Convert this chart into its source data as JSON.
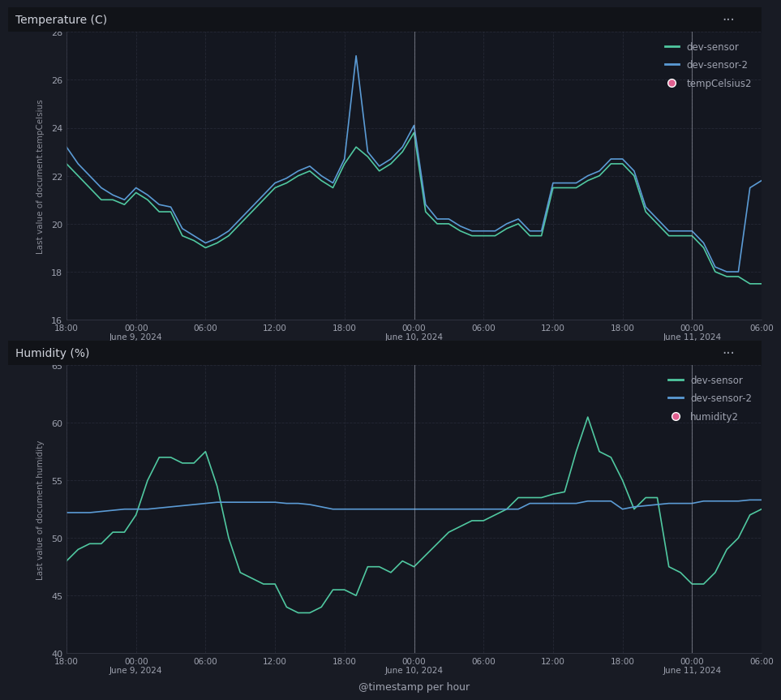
{
  "background_color": "#181b24",
  "panel_bg": "#141720",
  "header_bg": "#111318",
  "grid_color": "#2a2d3a",
  "text_color": "#9fa3b0",
  "title_color": "#d0d3dc",
  "axis_label_color": "#8a8d98",
  "temp_title": "Temperature (C)",
  "temp_ylabel": "Last value of document.tempCelsius",
  "temp_xlabel": "@timestamp per hour",
  "temp_ylim": [
    16,
    28
  ],
  "temp_yticks": [
    16,
    18,
    20,
    22,
    24,
    26,
    28
  ],
  "hum_title": "Humidity (%)",
  "hum_ylabel": "Last value of document.humidity",
  "hum_xlabel": "@timestamp per hour",
  "hum_ylim": [
    40,
    65
  ],
  "hum_yticks": [
    40,
    45,
    50,
    55,
    60,
    65
  ],
  "color_sensor1": "#50c8a0",
  "color_sensor2": "#5b9bd5",
  "color_sensor3": "#e06090",
  "legend_labels": [
    "dev-sensor",
    "dev-sensor-2",
    "tempCelsius2"
  ],
  "legend_labels_hum": [
    "dev-sensor",
    "dev-sensor-2",
    "humidity2"
  ],
  "xtick_labels": [
    "18:00",
    "00:00\nJune 9, 2024",
    "06:00",
    "12:00",
    "18:00",
    "00:00\nJune 10, 2024",
    "06:00",
    "12:00",
    "18:00",
    "00:00\nJune 11, 2024",
    "06:00"
  ],
  "xtick_positions": [
    0,
    6,
    12,
    18,
    24,
    30,
    36,
    42,
    48,
    54,
    60
  ],
  "vline_positions": [
    30,
    54
  ],
  "temp_sensor1_x": [
    0,
    1,
    2,
    3,
    4,
    5,
    6,
    7,
    8,
    9,
    10,
    11,
    12,
    13,
    14,
    15,
    16,
    17,
    18,
    19,
    20,
    21,
    22,
    23,
    24,
    25,
    26,
    27,
    28,
    29,
    30,
    31,
    32,
    33,
    34,
    35,
    36,
    37,
    38,
    39,
    40,
    41,
    42,
    43,
    44,
    45,
    46,
    47,
    48,
    49,
    50,
    51,
    52,
    53,
    54,
    55,
    56,
    57,
    58,
    59,
    60
  ],
  "temp_sensor1_y": [
    22.5,
    22.0,
    21.5,
    21.0,
    21.0,
    20.8,
    21.3,
    21.0,
    20.5,
    20.5,
    19.5,
    19.3,
    19.0,
    19.2,
    19.5,
    20.0,
    20.5,
    21.0,
    21.5,
    21.7,
    22.0,
    22.2,
    21.8,
    21.5,
    22.5,
    23.2,
    22.8,
    22.2,
    22.5,
    23.0,
    23.8,
    20.5,
    20.0,
    20.0,
    19.7,
    19.5,
    19.5,
    19.5,
    19.8,
    20.0,
    19.5,
    19.5,
    21.5,
    21.5,
    21.5,
    21.8,
    22.0,
    22.5,
    22.5,
    22.0,
    20.5,
    20.0,
    19.5,
    19.5,
    19.5,
    19.0,
    18.0,
    17.8,
    17.8,
    17.5,
    17.5
  ],
  "temp_sensor2_x": [
    0,
    1,
    2,
    3,
    4,
    5,
    6,
    7,
    8,
    9,
    10,
    11,
    12,
    13,
    14,
    15,
    16,
    17,
    18,
    19,
    20,
    21,
    22,
    23,
    24,
    25,
    26,
    27,
    28,
    29,
    30,
    31,
    32,
    33,
    34,
    35,
    36,
    37,
    38,
    39,
    40,
    41,
    42,
    43,
    44,
    45,
    46,
    47,
    48,
    49,
    50,
    51,
    52,
    53,
    54,
    55,
    56,
    57,
    58,
    59,
    60
  ],
  "temp_sensor2_y": [
    23.2,
    22.5,
    22.0,
    21.5,
    21.2,
    21.0,
    21.5,
    21.2,
    20.8,
    20.7,
    19.8,
    19.5,
    19.2,
    19.4,
    19.7,
    20.2,
    20.7,
    21.2,
    21.7,
    21.9,
    22.2,
    22.4,
    22.0,
    21.7,
    22.7,
    27.0,
    23.0,
    22.4,
    22.7,
    23.2,
    24.1,
    20.8,
    20.2,
    20.2,
    19.9,
    19.7,
    19.7,
    19.7,
    20.0,
    20.2,
    19.7,
    19.7,
    21.7,
    21.7,
    21.7,
    22.0,
    22.2,
    22.7,
    22.7,
    22.2,
    20.7,
    20.2,
    19.7,
    19.7,
    19.7,
    19.2,
    18.2,
    18.0,
    18.0,
    21.5,
    21.8
  ],
  "hum_sensor1_x": [
    0,
    1,
    2,
    3,
    4,
    5,
    6,
    7,
    8,
    9,
    10,
    11,
    12,
    13,
    14,
    15,
    16,
    17,
    18,
    19,
    20,
    21,
    22,
    23,
    24,
    25,
    26,
    27,
    28,
    29,
    30,
    31,
    32,
    33,
    34,
    35,
    36,
    37,
    38,
    39,
    40,
    41,
    42,
    43,
    44,
    45,
    46,
    47,
    48,
    49,
    50,
    51,
    52,
    53,
    54,
    55,
    56,
    57,
    58,
    59,
    60
  ],
  "hum_sensor1_y": [
    48.0,
    49.0,
    49.5,
    49.5,
    50.5,
    50.5,
    52.0,
    55.0,
    57.0,
    57.0,
    56.5,
    56.5,
    57.5,
    54.5,
    50.0,
    47.0,
    46.5,
    46.0,
    46.0,
    44.0,
    43.5,
    43.5,
    44.0,
    45.5,
    45.5,
    45.0,
    47.5,
    47.5,
    47.0,
    48.0,
    47.5,
    48.5,
    49.5,
    50.5,
    51.0,
    51.5,
    51.5,
    52.0,
    52.5,
    53.5,
    53.5,
    53.5,
    53.8,
    54.0,
    57.5,
    60.5,
    57.5,
    57.0,
    55.0,
    52.5,
    53.5,
    53.5,
    47.5,
    47.0,
    46.0,
    46.0,
    47.0,
    49.0,
    50.0,
    52.0,
    52.5
  ],
  "hum_sensor2_x": [
    0,
    1,
    2,
    3,
    4,
    5,
    6,
    7,
    8,
    9,
    10,
    11,
    12,
    13,
    14,
    15,
    16,
    17,
    18,
    19,
    20,
    21,
    22,
    23,
    24,
    25,
    26,
    27,
    28,
    29,
    30,
    31,
    32,
    33,
    34,
    35,
    36,
    37,
    38,
    39,
    40,
    41,
    42,
    43,
    44,
    45,
    46,
    47,
    48,
    49,
    50,
    51,
    52,
    53,
    54,
    55,
    56,
    57,
    58,
    59,
    60
  ],
  "hum_sensor2_y": [
    52.2,
    52.2,
    52.2,
    52.3,
    52.4,
    52.5,
    52.5,
    52.5,
    52.6,
    52.7,
    52.8,
    52.9,
    53.0,
    53.1,
    53.1,
    53.1,
    53.1,
    53.1,
    53.1,
    53.0,
    53.0,
    52.9,
    52.7,
    52.5,
    52.5,
    52.5,
    52.5,
    52.5,
    52.5,
    52.5,
    52.5,
    52.5,
    52.5,
    52.5,
    52.5,
    52.5,
    52.5,
    52.5,
    52.5,
    52.5,
    53.0,
    53.0,
    53.0,
    53.0,
    53.0,
    53.2,
    53.2,
    53.2,
    52.5,
    52.7,
    52.8,
    52.9,
    53.0,
    53.0,
    53.0,
    53.2,
    53.2,
    53.2,
    53.2,
    53.3,
    53.3
  ]
}
